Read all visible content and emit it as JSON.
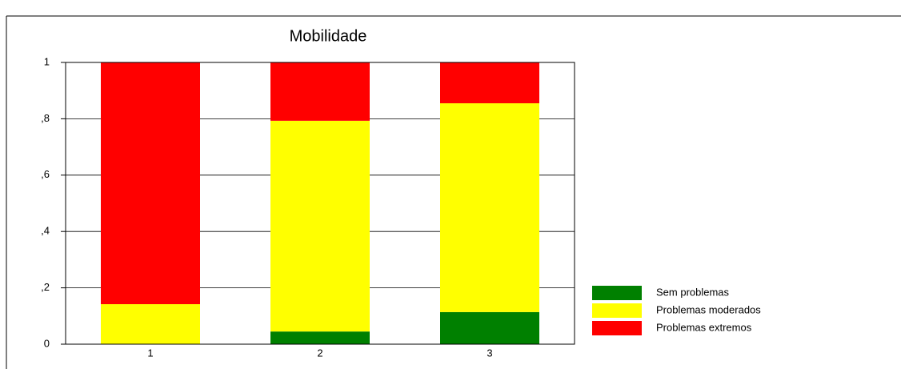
{
  "chart_data": {
    "type": "bar",
    "stacked": true,
    "title": "Mobilidade",
    "categories": [
      "1",
      "2",
      "3"
    ],
    "series": [
      {
        "name": "Sem problemas",
        "color": "#008000",
        "values": [
          0,
          0.045,
          0.114
        ]
      },
      {
        "name": "Problemas moderados",
        "color": "#ffff00",
        "values": [
          0.142,
          0.748,
          0.741
        ]
      },
      {
        "name": "Problemas extremos",
        "color": "#ff0000",
        "values": [
          0.858,
          0.207,
          0.145
        ]
      }
    ],
    "ylim": [
      0,
      1
    ],
    "yticks": [
      0,
      {
        "value": 0.2,
        "label": ",2"
      },
      {
        "value": 0.4,
        "label": ",4"
      },
      {
        "value": 0.6,
        "label": ",6"
      },
      {
        "value": 0.8,
        "label": ",8"
      },
      1
    ],
    "grid": true,
    "legend": "lower right"
  }
}
